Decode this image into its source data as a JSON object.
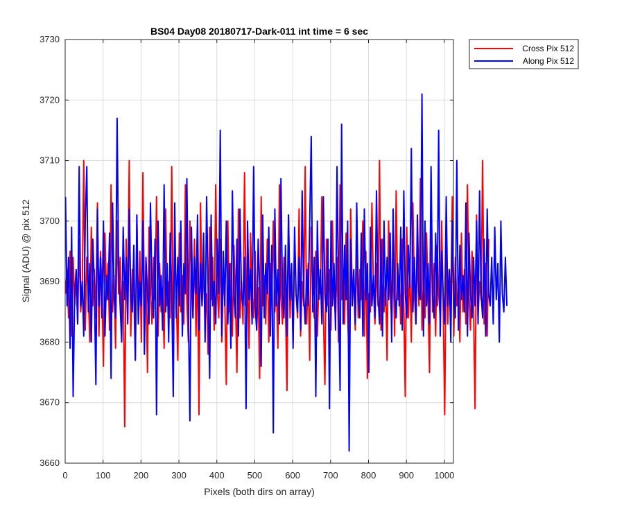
{
  "chart_data": {
    "type": "line",
    "title": "BS04 Day08 20180717-Dark-011 int time = 6 sec",
    "xlabel": "Pixels (both dirs on array)",
    "ylabel": "Signal (ADU) @ pix 512",
    "xlim": [
      0,
      1024
    ],
    "ylim": [
      3660,
      3730
    ],
    "xticks": [
      0,
      100,
      200,
      300,
      400,
      500,
      600,
      700,
      800,
      900,
      1000
    ],
    "yticks": [
      3660,
      3670,
      3680,
      3690,
      3700,
      3710,
      3720,
      3730
    ],
    "grid": true,
    "legend_position": "outside-top-right",
    "x_start": 1,
    "x_step": 4,
    "series": [
      {
        "name": "Cross Pix 512",
        "color": "#ff0000",
        "values": [
          3688,
          3692,
          3684,
          3695,
          3681,
          3694,
          3686,
          3691,
          3683,
          3697,
          3685,
          3689,
          3710,
          3682,
          3694,
          3688,
          3680,
          3699,
          3686,
          3692,
          3684,
          3703,
          3681,
          3695,
          3689,
          3676,
          3698,
          3687,
          3693,
          3682,
          3706,
          3685,
          3691,
          3679,
          3700,
          3688,
          3694,
          3683,
          3690,
          3666,
          3697,
          3686,
          3710,
          3681,
          3692,
          3688,
          3677,
          3701,
          3684,
          3695,
          3680,
          3708,
          3686,
          3691,
          3675,
          3699,
          3689,
          3683,
          3694,
          3687,
          3704,
          3681,
          3693,
          3685,
          3689,
          3679,
          3702,
          3686,
          3690,
          3684,
          3709,
          3682,
          3695,
          3688,
          3677,
          3698,
          3685,
          3691,
          3683,
          3706,
          3687,
          3680,
          3700,
          3690,
          3684,
          3697,
          3681,
          3694,
          3668,
          3703,
          3686,
          3692,
          3683,
          3688,
          3678,
          3699,
          3687,
          3694,
          3682,
          3706,
          3689,
          3684,
          3697,
          3680,
          3691,
          3687,
          3673,
          3700,
          3685,
          3693,
          3681,
          3696,
          3688,
          3675,
          3702,
          3684,
          3690,
          3683,
          3708,
          3686,
          3692,
          3679,
          3698,
          3688,
          3684,
          3695,
          3682,
          3689,
          3674,
          3704,
          3686,
          3691,
          3683,
          3697,
          3680,
          3693,
          3687,
          3700,
          3685,
          3690,
          3679,
          3706,
          3688,
          3683,
          3694,
          3686,
          3672,
          3701,
          3684,
          3692,
          3680,
          3697,
          3688,
          3684,
          3702,
          3681,
          3690,
          3686,
          3709,
          3683,
          3693,
          3677,
          3699,
          3687,
          3684,
          3695,
          3681,
          3690,
          3688,
          3704,
          3685,
          3673,
          3697,
          3686,
          3692,
          3682,
          3700,
          3688,
          3684,
          3694,
          3680,
          3706,
          3687,
          3691,
          3683,
          3698,
          3685,
          3676,
          3702,
          3688,
          3690,
          3682,
          3696,
          3684,
          3692,
          3687,
          3700,
          3681,
          3695,
          3674,
          3688,
          3685,
          3703,
          3689,
          3683,
          3693,
          3686,
          3710,
          3682,
          3697,
          3685,
          3691,
          3677,
          3700,
          3688,
          3684,
          3694,
          3681,
          3705,
          3687,
          3691,
          3683,
          3697,
          3686,
          3671,
          3699,
          3684,
          3692,
          3680,
          3703,
          3688,
          3683,
          3695,
          3686,
          3707,
          3682,
          3690,
          3684,
          3698,
          3687,
          3675,
          3701,
          3685,
          3693,
          3681,
          3696,
          3688,
          3684,
          3700,
          3686,
          3668,
          3697,
          3683,
          3692,
          3687,
          3704,
          3681,
          3694,
          3686,
          3689,
          3680,
          3698,
          3685,
          3692,
          3683,
          3706,
          3688,
          3682,
          3695,
          3686,
          3669,
          3701,
          3684,
          3690,
          3687,
          3710,
          3683,
          3693,
          3681,
          3697
        ]
      },
      {
        "name": "Along Pix 512",
        "color": "#0000ff",
        "values": [
          3704,
          3686,
          3694,
          3679,
          3699,
          3671,
          3688,
          3692,
          3683,
          3709,
          3686,
          3690,
          3681,
          3700,
          3709,
          3685,
          3693,
          3680,
          3697,
          3689,
          3673,
          3702,
          3686,
          3694,
          3684,
          3700,
          3681,
          3691,
          3687,
          3698,
          3674,
          3703,
          3688,
          3684,
          3717,
          3692,
          3686,
          3680,
          3699,
          3687,
          3694,
          3683,
          3702,
          3688,
          3685,
          3696,
          3677,
          3701,
          3683,
          3690,
          3686,
          3700,
          3678,
          3694,
          3688,
          3683,
          3703,
          3689,
          3684,
          3697,
          3668,
          3700,
          3686,
          3691,
          3682,
          3706,
          3685,
          3693,
          3680,
          3698,
          3688,
          3671,
          3703,
          3684,
          3694,
          3686,
          3700,
          3681,
          3693,
          3688,
          3707,
          3685,
          3667,
          3699,
          3684,
          3694,
          3688,
          3701,
          3682,
          3693,
          3686,
          3698,
          3680,
          3704,
          3689,
          3674,
          3701,
          3686,
          3690,
          3683,
          3697,
          3688,
          3715,
          3681,
          3695,
          3686,
          3700,
          3683,
          3693,
          3679,
          3705,
          3688,
          3684,
          3697,
          3681,
          3702,
          3688,
          3686,
          3694,
          3669,
          3700,
          3687,
          3692,
          3683,
          3709,
          3686,
          3682,
          3697,
          3689,
          3676,
          3701,
          3684,
          3693,
          3688,
          3699,
          3681,
          3696,
          3665,
          3702,
          3686,
          3692,
          3683,
          3707,
          3688,
          3684,
          3696,
          3681,
          3701,
          3687,
          3693,
          3679,
          3699,
          3688,
          3685,
          3694,
          3682,
          3705,
          3688,
          3683,
          3692,
          3686,
          3700,
          3714,
          3685,
          3694,
          3671,
          3700,
          3687,
          3692,
          3683,
          3704,
          3688,
          3685,
          3697,
          3669,
          3700,
          3686,
          3693,
          3682,
          3709,
          3688,
          3672,
          3716,
          3683,
          3696,
          3687,
          3700,
          3662,
          3697,
          3686,
          3692,
          3683,
          3703,
          3688,
          3684,
          3698,
          3681,
          3702,
          3687,
          3693,
          3675,
          3699,
          3686,
          3691,
          3684,
          3705,
          3688,
          3683,
          3697,
          3681,
          3700,
          3686,
          3694,
          3687,
          3698,
          3680,
          3702,
          3688,
          3684,
          3693,
          3686,
          3699,
          3682,
          3705,
          3688,
          3684,
          3696,
          3689,
          3712,
          3685,
          3694,
          3683,
          3701,
          3688,
          3687,
          3721,
          3681,
          3700,
          3686,
          3693,
          3683,
          3709,
          3688,
          3684,
          3698,
          3686,
          3715,
          3681,
          3695,
          3688,
          3683,
          3704,
          3686,
          3692,
          3680,
          3700,
          3688,
          3684,
          3710,
          3682,
          3696,
          3687,
          3691,
          3685,
          3703,
          3681,
          3698,
          3688,
          3684,
          3694,
          3686,
          3700,
          3683,
          3705,
          3688,
          3684,
          3697,
          3681,
          3702,
          3688,
          3686,
          3694,
          3683,
          3699,
          3687,
          3693,
          3680,
          3700,
          3688,
          3685,
          3694,
          3686
        ]
      }
    ]
  }
}
